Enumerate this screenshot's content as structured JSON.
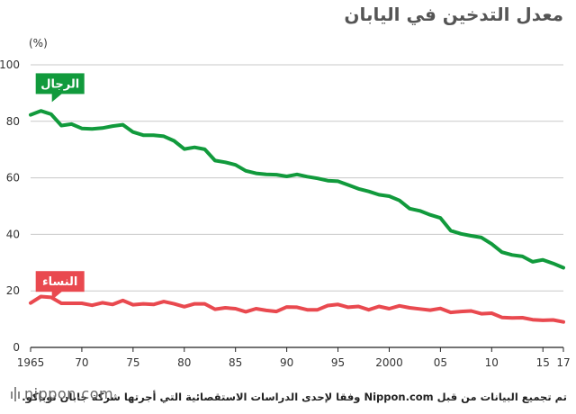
{
  "title": "معدل التدخين في اليابان",
  "source": "تم تجميع البيانات من قبل Nippon.com وفقا لإحدى الدراسات الاستقصائية التي أجرتها شركة جابان توباكو.",
  "logo": "nippon.com",
  "chart_data": {
    "type": "line",
    "ylabel": "(%)",
    "ylim": [
      0,
      100
    ],
    "yticks": [
      0,
      20,
      40,
      60,
      80,
      100
    ],
    "xlim": [
      1965,
      2017
    ],
    "xtick_values": [
      1965,
      1970,
      1975,
      1980,
      1985,
      1990,
      1995,
      2000,
      2005,
      2010,
      2015,
      2017
    ],
    "xtick_labels": [
      "1965",
      "70",
      "75",
      "80",
      "85",
      "90",
      "95",
      "2000",
      "05",
      "10",
      "15",
      "17"
    ],
    "grid": true,
    "x": [
      1965,
      1966,
      1967,
      1968,
      1969,
      1970,
      1971,
      1972,
      1973,
      1974,
      1975,
      1976,
      1977,
      1978,
      1979,
      1980,
      1981,
      1982,
      1983,
      1984,
      1985,
      1986,
      1987,
      1988,
      1989,
      1990,
      1991,
      1992,
      1993,
      1994,
      1995,
      1996,
      1997,
      1998,
      1999,
      2000,
      2001,
      2002,
      2003,
      2004,
      2005,
      2006,
      2007,
      2008,
      2009,
      2010,
      2011,
      2012,
      2013,
      2014,
      2015,
      2016,
      2017
    ],
    "series": [
      {
        "name": "الرجال",
        "color": "#119a3c",
        "values": [
          82.3,
          83.7,
          82.5,
          78.5,
          79.0,
          77.5,
          77.3,
          77.6,
          78.3,
          78.8,
          76.2,
          75.1,
          75.1,
          74.7,
          73.1,
          70.2,
          70.8,
          70.1,
          66.1,
          65.5,
          64.6,
          62.5,
          61.6,
          61.2,
          61.1,
          60.5,
          61.2,
          60.4,
          59.8,
          59.0,
          58.8,
          57.5,
          56.1,
          55.2,
          54.0,
          53.5,
          52.0,
          49.1,
          48.3,
          46.9,
          45.8,
          41.3,
          40.2,
          39.5,
          38.9,
          36.6,
          33.7,
          32.7,
          32.2,
          30.3,
          31.0,
          29.7,
          28.2
        ]
      },
      {
        "name": "النساء",
        "color": "#e9494f",
        "values": [
          15.7,
          18.0,
          17.7,
          15.6,
          15.6,
          15.6,
          14.9,
          15.8,
          15.2,
          16.6,
          15.1,
          15.4,
          15.2,
          16.2,
          15.4,
          14.4,
          15.4,
          15.4,
          13.5,
          14.0,
          13.7,
          12.6,
          13.7,
          13.1,
          12.7,
          14.3,
          14.2,
          13.3,
          13.3,
          14.8,
          15.2,
          14.2,
          14.5,
          13.3,
          14.5,
          13.7,
          14.7,
          14.0,
          13.6,
          13.2,
          13.8,
          12.4,
          12.7,
          12.9,
          11.9,
          12.1,
          10.6,
          10.4,
          10.5,
          9.8,
          9.6,
          9.7,
          9.0
        ]
      }
    ]
  }
}
